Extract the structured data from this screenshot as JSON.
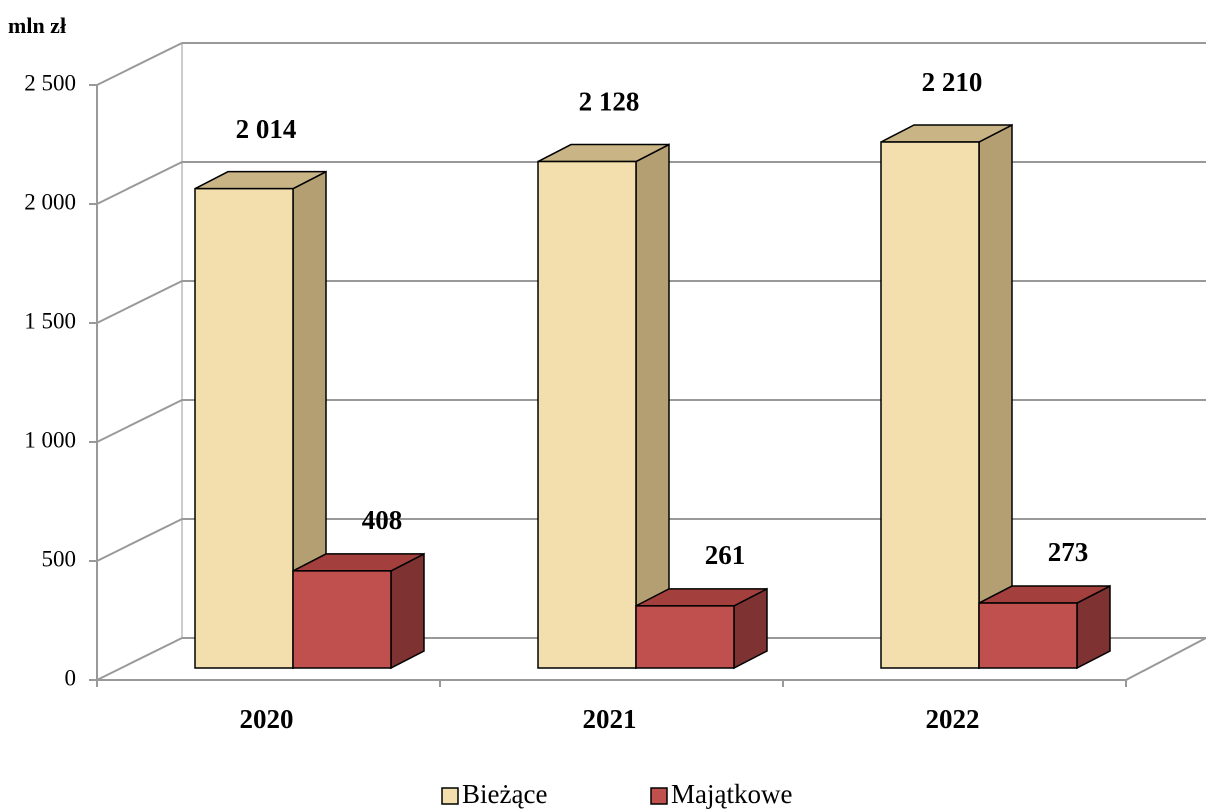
{
  "chart_data": {
    "type": "bar3d",
    "unit_label": "mln zł",
    "categories": [
      "2020",
      "2021",
      "2022"
    ],
    "series": [
      {
        "name": "Bieżące",
        "color": "#f3dfae",
        "side_color": "#b39f72",
        "top_color": "#c9b485",
        "values": [
          2014,
          2128,
          2210
        ],
        "value_labels": [
          "2 014",
          "2 128",
          "2 210"
        ]
      },
      {
        "name": "Majątkowe",
        "color": "#c0504d",
        "side_color": "#7e3232",
        "top_color": "#a33f3c",
        "values": [
          408,
          261,
          273
        ]
      }
    ],
    "ylim": [
      0,
      2500
    ],
    "yticks": [
      0,
      500,
      {
        "value": 1000,
        "label": "1 000"
      },
      {
        "value": 1500,
        "label": "1 500"
      },
      {
        "value": 2000,
        "label": "2 000"
      },
      {
        "value": 2500,
        "label": "2 500"
      }
    ],
    "grid": true,
    "legend": "bottom"
  }
}
